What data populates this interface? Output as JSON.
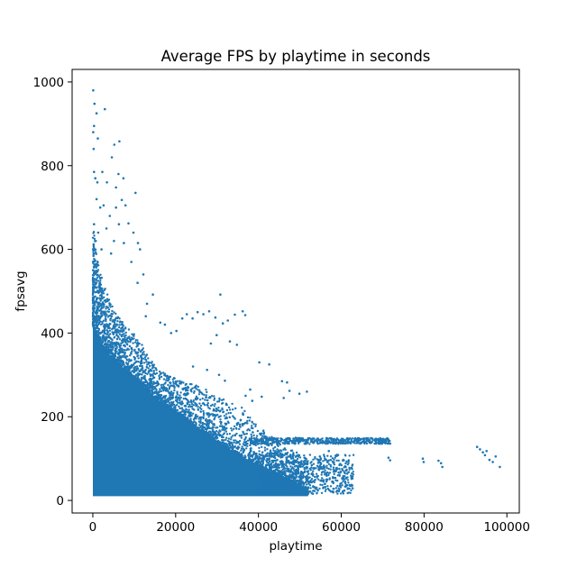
{
  "chart_data": {
    "type": "scatter",
    "title": "Average FPS by playtime in seconds",
    "xlabel": "playtime",
    "ylabel": "fpsavg",
    "xlim": [
      -5000,
      103000
    ],
    "ylim": [
      -30,
      1030
    ],
    "xticks": [
      0,
      20000,
      40000,
      60000,
      80000,
      100000
    ],
    "yticks": [
      0,
      200,
      400,
      600,
      800,
      1000
    ],
    "grid": false,
    "marker_color": "#1f77b4",
    "series": [
      {
        "points": [
          [
            100,
            980
          ],
          [
            400,
            948
          ],
          [
            900,
            925
          ],
          [
            2900,
            935
          ],
          [
            300,
            895
          ],
          [
            100,
            880
          ],
          [
            1200,
            865
          ],
          [
            5200,
            850
          ],
          [
            6400,
            858
          ],
          [
            200,
            840
          ],
          [
            4600,
            820
          ],
          [
            300,
            785
          ],
          [
            2300,
            785
          ],
          [
            600,
            770
          ],
          [
            1100,
            760
          ],
          [
            6200,
            780
          ],
          [
            3400,
            760
          ],
          [
            5600,
            748
          ],
          [
            7400,
            770
          ],
          [
            10300,
            735
          ],
          [
            900,
            720
          ],
          [
            1800,
            700
          ],
          [
            2600,
            705
          ],
          [
            7900,
            705
          ],
          [
            5600,
            700
          ],
          [
            7000,
            718
          ],
          [
            4100,
            680
          ],
          [
            6300,
            660
          ],
          [
            300,
            660
          ],
          [
            8600,
            662
          ],
          [
            9800,
            640
          ],
          [
            1300,
            640
          ],
          [
            3300,
            650
          ],
          [
            5100,
            620
          ],
          [
            7500,
            615
          ],
          [
            10900,
            615
          ],
          [
            11400,
            600
          ],
          [
            700,
            620
          ],
          [
            2100,
            600
          ],
          [
            4400,
            590
          ],
          [
            9300,
            570
          ],
          [
            12200,
            540
          ],
          [
            10800,
            520
          ],
          [
            14500,
            492
          ],
          [
            13100,
            470
          ],
          [
            12800,
            440
          ],
          [
            16300,
            425
          ],
          [
            17400,
            420
          ],
          [
            18900,
            400
          ],
          [
            20200,
            405
          ],
          [
            21600,
            435
          ],
          [
            22700,
            445
          ],
          [
            24100,
            435
          ],
          [
            25300,
            450
          ],
          [
            26700,
            445
          ],
          [
            28100,
            452
          ],
          [
            29600,
            437
          ],
          [
            30800,
            492
          ],
          [
            31400,
            423
          ],
          [
            32600,
            430
          ],
          [
            34300,
            444
          ],
          [
            36200,
            452
          ],
          [
            36800,
            443
          ],
          [
            29900,
            395
          ],
          [
            28500,
            375
          ],
          [
            33100,
            380
          ],
          [
            34800,
            372
          ],
          [
            40200,
            330
          ],
          [
            42600,
            325
          ],
          [
            45700,
            285
          ],
          [
            46900,
            282
          ],
          [
            47500,
            262
          ],
          [
            46100,
            245
          ],
          [
            49900,
            255
          ],
          [
            51700,
            260
          ],
          [
            38000,
            265
          ],
          [
            40800,
            248
          ],
          [
            36900,
            250
          ],
          [
            38500,
            238
          ],
          [
            24200,
            320
          ],
          [
            27600,
            312
          ],
          [
            30500,
            300
          ],
          [
            31900,
            286
          ],
          [
            49000,
            150
          ],
          [
            52000,
            148
          ],
          [
            55000,
            140
          ],
          [
            58000,
            146
          ],
          [
            61000,
            142
          ],
          [
            64000,
            148
          ],
          [
            67000,
            138
          ],
          [
            70000,
            145
          ],
          [
            70800,
            141
          ],
          [
            71400,
            102
          ],
          [
            71800,
            96
          ],
          [
            79700,
            100
          ],
          [
            79900,
            92
          ],
          [
            83500,
            95
          ],
          [
            84100,
            89
          ],
          [
            84400,
            80
          ],
          [
            92800,
            128
          ],
          [
            93500,
            122
          ],
          [
            94200,
            115
          ],
          [
            94700,
            108
          ],
          [
            95100,
            118
          ],
          [
            95800,
            97
          ],
          [
            96600,
            92
          ],
          [
            97300,
            105
          ],
          [
            98300,
            80
          ],
          [
            56000,
            80
          ],
          [
            59000,
            75
          ],
          [
            62500,
            78
          ],
          [
            61000,
            42
          ],
          [
            53000,
            65
          ],
          [
            55000,
            98
          ],
          [
            57000,
            118
          ],
          [
            45000,
            40
          ],
          [
            48000,
            45
          ]
        ],
        "dense_region": {
          "x_range": [
            0,
            52000
          ],
          "y_floor": 10,
          "upper_envelope": [
            [
              0,
              650
            ],
            [
              300,
              640
            ],
            [
              800,
              600
            ],
            [
              1500,
              560
            ],
            [
              2500,
              520
            ],
            [
              4000,
              480
            ],
            [
              6000,
              440
            ],
            [
              8000,
              420
            ],
            [
              10000,
              400
            ],
            [
              12000,
              370
            ],
            [
              14000,
              335
            ],
            [
              16000,
              315
            ],
            [
              18000,
              298
            ],
            [
              20000,
              292
            ],
            [
              22000,
              285
            ],
            [
              25000,
              275
            ],
            [
              28000,
              262
            ],
            [
              30000,
              248
            ],
            [
              33000,
              235
            ],
            [
              36000,
              222
            ],
            [
              39000,
              188
            ],
            [
              42000,
              160
            ],
            [
              45000,
              140
            ],
            [
              48000,
              122
            ],
            [
              52000,
              102
            ]
          ],
          "solid_envelope": [
            [
              0,
              420
            ],
            [
              500,
              400
            ],
            [
              1500,
              380
            ],
            [
              3000,
              360
            ],
            [
              5000,
              340
            ],
            [
              8000,
              310
            ],
            [
              11000,
              285
            ],
            [
              14000,
              255
            ],
            [
              17000,
              230
            ],
            [
              20000,
              210
            ],
            [
              23000,
              190
            ],
            [
              26000,
              170
            ],
            [
              29000,
              150
            ],
            [
              32000,
              130
            ],
            [
              35000,
              110
            ],
            [
              38000,
              95
            ],
            [
              41000,
              80
            ],
            [
              44000,
              65
            ],
            [
              47000,
              50
            ],
            [
              50000,
              35
            ],
            [
              52000,
              25
            ]
          ]
        }
      }
    ]
  }
}
